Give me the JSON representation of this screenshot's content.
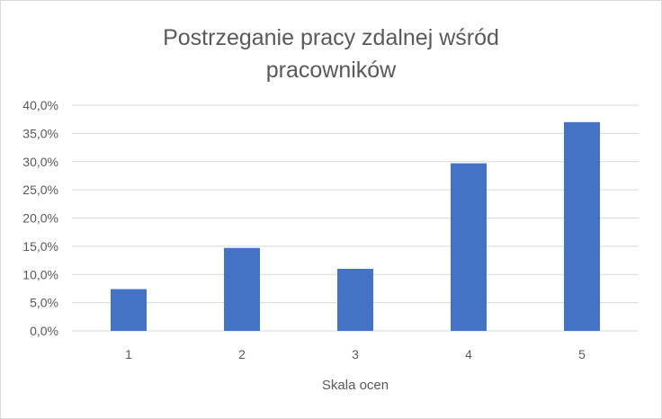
{
  "chart_data": {
    "type": "bar",
    "title": "Postrzeganie pracy zdalnej wśród pracowników",
    "title_lines": [
      "Postrzeganie pracy zdalnej wśród",
      "pracowników"
    ],
    "xlabel": "Skala ocen",
    "ylabel": "",
    "categories": [
      "1",
      "2",
      "3",
      "4",
      "5"
    ],
    "values": [
      7.4,
      14.7,
      11.0,
      29.7,
      37.0
    ],
    "ylim": [
      0,
      40
    ],
    "yticks": [
      0,
      5,
      10,
      15,
      20,
      25,
      30,
      35,
      40
    ],
    "ytick_labels": [
      "0,0%",
      "5,0%",
      "10,0%",
      "15,0%",
      "20,0%",
      "25,0%",
      "30,0%",
      "35,0%",
      "40,0%"
    ],
    "grid": true,
    "legend": "none",
    "bar_color": "#4472c4",
    "grid_color": "#d9d9d9"
  }
}
